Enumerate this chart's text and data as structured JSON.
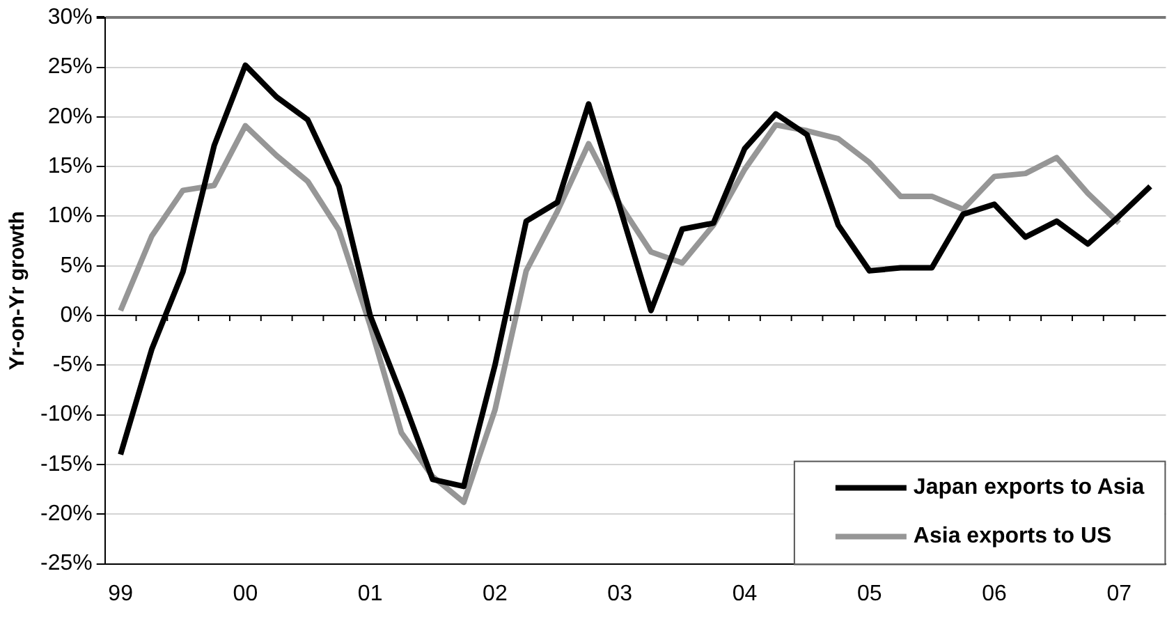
{
  "chart_data": {
    "type": "line",
    "ylabel": "Yr-on-Yr growth",
    "categories": [
      "99",
      null,
      null,
      null,
      "00",
      null,
      null,
      null,
      "01",
      null,
      null,
      null,
      "02",
      null,
      null,
      null,
      "03",
      null,
      null,
      null,
      "04",
      null,
      null,
      null,
      "05",
      null,
      null,
      null,
      "06",
      null,
      null,
      null,
      "07",
      null
    ],
    "series": [
      {
        "name": "Japan exports to Asia",
        "color": "#000000",
        "values": [
          -14,
          -3.4,
          4.4,
          17.1,
          25.2,
          22,
          19.7,
          13,
          0,
          -8,
          -16.5,
          -17.2,
          -5,
          9.5,
          11.4,
          21.3,
          10.9,
          0.5,
          8.7,
          9.3,
          16.8,
          20.3,
          18.2,
          9.1,
          4.5,
          4.8,
          4.8,
          10.2,
          11.2,
          7.9,
          9.5,
          7.2,
          10,
          13
        ]
      },
      {
        "name": "Asia exports to US",
        "color": "#969696",
        "values": [
          0.5,
          8,
          12.6,
          13.1,
          19.1,
          16.1,
          13.5,
          8.6,
          -1,
          -11.8,
          -16.2,
          -18.8,
          -9.5,
          4.5,
          10.5,
          17.3,
          11.2,
          6.4,
          5.3,
          9.1,
          14.7,
          19.2,
          18.6,
          17.8,
          15.4,
          12,
          12,
          10.7,
          14,
          14.3,
          15.9,
          12.3,
          9.3,
          null
        ]
      }
    ],
    "ylim": [
      -25,
      30
    ],
    "yticks": [
      {
        "value": -25,
        "label": "-25%"
      },
      {
        "value": -20,
        "label": "-20%"
      },
      {
        "value": -15,
        "label": "-15%"
      },
      {
        "value": -10,
        "label": "-10%"
      },
      {
        "value": -5,
        "label": "-5%"
      },
      {
        "value": 0,
        "label": "0%"
      },
      {
        "value": 5,
        "label": "5%"
      },
      {
        "value": 10,
        "label": "10%"
      },
      {
        "value": 15,
        "label": "15%"
      },
      {
        "value": 20,
        "label": "20%"
      },
      {
        "value": 25,
        "label": "25%"
      },
      {
        "value": 30,
        "label": "30%"
      }
    ],
    "grid": "y",
    "legend": "bottom right",
    "marker": "none",
    "line_style": "solid"
  }
}
